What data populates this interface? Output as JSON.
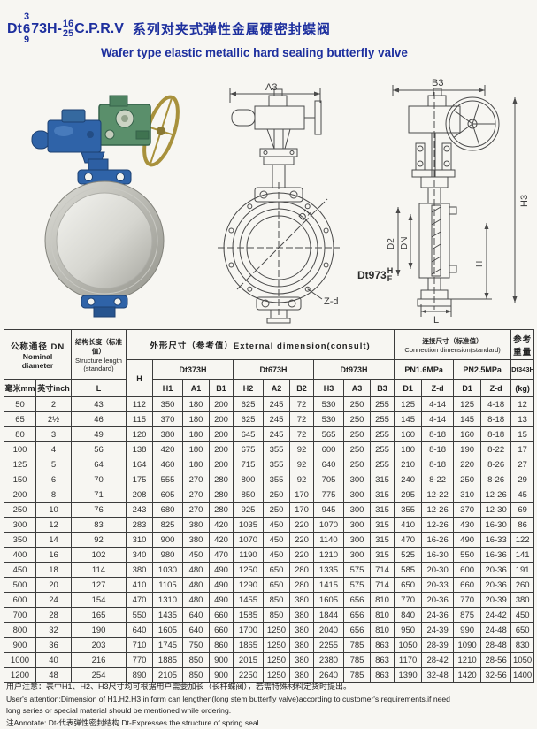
{
  "title": {
    "model_prefix": "Dt",
    "stack_top": "3",
    "stack_mid": "6",
    "stack_bottom": "9",
    "model_rest": "73H-",
    "pn_top": "16",
    "pn_bottom": "25",
    "series": "C.P.R.V",
    "title_zh": "系列对夹式弹性金属硬密封蝶阀",
    "title_en": "Wafer type elastic metallic hard sealing butterfly valve",
    "accent_color": "#1d2f9e"
  },
  "drawings": {
    "front": {
      "dim_a3": "A3",
      "dim_d1": "D1",
      "dim_zd": "Z-d",
      "caption_prefix": "Dt973",
      "caption_top": "H",
      "caption_bottom": "F"
    },
    "side": {
      "dim_b3": "B3",
      "dim_h3": "H3",
      "dim_d2": "D2",
      "dim_dn": "DN",
      "dim_h": "H",
      "dim_l": "L"
    }
  },
  "table": {
    "header": {
      "nominal_zh": "公称通径 DN",
      "nominal_en1": "Nominal",
      "nominal_en2": "diameter",
      "length_zh": "结构长度（标准值）",
      "length_en1": "Structure length",
      "length_en2": "(standard)",
      "external_group": "外形尺寸（参考值）External dimension(consult)",
      "connection_zh": "连接尺寸（标准值）",
      "connection_en": "Connection dimension(standard)",
      "weight_zh1": "参考",
      "weight_zh2": "重量",
      "weight_model": "Dt343H",
      "weight_unit": "(kg)",
      "col_mm": "毫米mm",
      "col_inch": "英寸inch",
      "col_L": "L",
      "col_H": "H",
      "m373": "Dt373H",
      "m673": "Dt673H",
      "m973": "Dt973H",
      "pn16": "PN1.6MPa",
      "pn25": "PN2.5MPa",
      "sub": [
        "H1",
        "A1",
        "B1",
        "H2",
        "A2",
        "B2",
        "H3",
        "A3",
        "B3",
        "D1",
        "Z-d",
        "D1",
        "Z-d"
      ]
    },
    "rows": [
      [
        "50",
        "2",
        "43",
        "112",
        "350",
        "180",
        "200",
        "625",
        "245",
        "72",
        "530",
        "250",
        "255",
        "125",
        "4-14",
        "125",
        "4-18",
        "12"
      ],
      [
        "65",
        "2½",
        "46",
        "115",
        "370",
        "180",
        "200",
        "625",
        "245",
        "72",
        "530",
        "250",
        "255",
        "145",
        "4-14",
        "145",
        "8-18",
        "13"
      ],
      [
        "80",
        "3",
        "49",
        "120",
        "380",
        "180",
        "200",
        "645",
        "245",
        "72",
        "565",
        "250",
        "255",
        "160",
        "8-18",
        "160",
        "8-18",
        "15"
      ],
      [
        "100",
        "4",
        "56",
        "138",
        "420",
        "180",
        "200",
        "675",
        "355",
        "92",
        "600",
        "250",
        "255",
        "180",
        "8-18",
        "190",
        "8-22",
        "17"
      ],
      [
        "125",
        "5",
        "64",
        "164",
        "460",
        "180",
        "200",
        "715",
        "355",
        "92",
        "640",
        "250",
        "255",
        "210",
        "8-18",
        "220",
        "8-26",
        "27"
      ],
      [
        "150",
        "6",
        "70",
        "175",
        "555",
        "270",
        "280",
        "800",
        "355",
        "92",
        "705",
        "300",
        "315",
        "240",
        "8-22",
        "250",
        "8-26",
        "29"
      ],
      [
        "200",
        "8",
        "71",
        "208",
        "605",
        "270",
        "280",
        "850",
        "250",
        "170",
        "775",
        "300",
        "315",
        "295",
        "12-22",
        "310",
        "12-26",
        "45"
      ],
      [
        "250",
        "10",
        "76",
        "243",
        "680",
        "270",
        "280",
        "925",
        "250",
        "170",
        "945",
        "300",
        "315",
        "355",
        "12-26",
        "370",
        "12-30",
        "69"
      ],
      [
        "300",
        "12",
        "83",
        "283",
        "825",
        "380",
        "420",
        "1035",
        "450",
        "220",
        "1070",
        "300",
        "315",
        "410",
        "12-26",
        "430",
        "16-30",
        "86"
      ],
      [
        "350",
        "14",
        "92",
        "310",
        "900",
        "380",
        "420",
        "1070",
        "450",
        "220",
        "1140",
        "300",
        "315",
        "470",
        "16-26",
        "490",
        "16-33",
        "122"
      ],
      [
        "400",
        "16",
        "102",
        "340",
        "980",
        "450",
        "470",
        "1190",
        "450",
        "220",
        "1210",
        "300",
        "315",
        "525",
        "16-30",
        "550",
        "16-36",
        "141"
      ],
      [
        "450",
        "18",
        "114",
        "380",
        "1030",
        "480",
        "490",
        "1250",
        "650",
        "280",
        "1335",
        "575",
        "714",
        "585",
        "20-30",
        "600",
        "20-36",
        "191"
      ],
      [
        "500",
        "20",
        "127",
        "410",
        "1105",
        "480",
        "490",
        "1290",
        "650",
        "280",
        "1415",
        "575",
        "714",
        "650",
        "20-33",
        "660",
        "20-36",
        "260"
      ],
      [
        "600",
        "24",
        "154",
        "470",
        "1310",
        "480",
        "490",
        "1455",
        "850",
        "380",
        "1605",
        "656",
        "810",
        "770",
        "20-36",
        "770",
        "20-39",
        "380"
      ],
      [
        "700",
        "28",
        "165",
        "550",
        "1435",
        "640",
        "660",
        "1585",
        "850",
        "380",
        "1844",
        "656",
        "810",
        "840",
        "24-36",
        "875",
        "24-42",
        "450"
      ],
      [
        "800",
        "32",
        "190",
        "640",
        "1605",
        "640",
        "660",
        "1700",
        "1250",
        "380",
        "2040",
        "656",
        "810",
        "950",
        "24-39",
        "990",
        "24-48",
        "650"
      ],
      [
        "900",
        "36",
        "203",
        "710",
        "1745",
        "750",
        "860",
        "1865",
        "1250",
        "380",
        "2255",
        "785",
        "863",
        "1050",
        "28-39",
        "1090",
        "28-48",
        "830"
      ],
      [
        "1000",
        "40",
        "216",
        "770",
        "1885",
        "850",
        "900",
        "2015",
        "1250",
        "380",
        "2380",
        "785",
        "863",
        "1170",
        "28-42",
        "1210",
        "28-56",
        "1050"
      ],
      [
        "1200",
        "48",
        "254",
        "890",
        "2105",
        "850",
        "900",
        "2250",
        "1250",
        "380",
        "2640",
        "785",
        "863",
        "1390",
        "32-48",
        "1420",
        "32-56",
        "1400"
      ]
    ]
  },
  "notes": {
    "line1_zh": "用户注意：表中H1、H2、H3尺寸均可根据用户需要加长（长杆蝶阀），若需特殊材料定货时提出。",
    "line2_en": "User's attention:Dimension of H1,H2,H3 in form can lengthen(long stem butterfly valve)according to customer's requirements,if need",
    "line3_en": "long series or special material should be mentioned while ordering.",
    "line4": "注Annotate: Dt-代表弹性密封结构 Dt-Expresses the structure of spring seal"
  }
}
